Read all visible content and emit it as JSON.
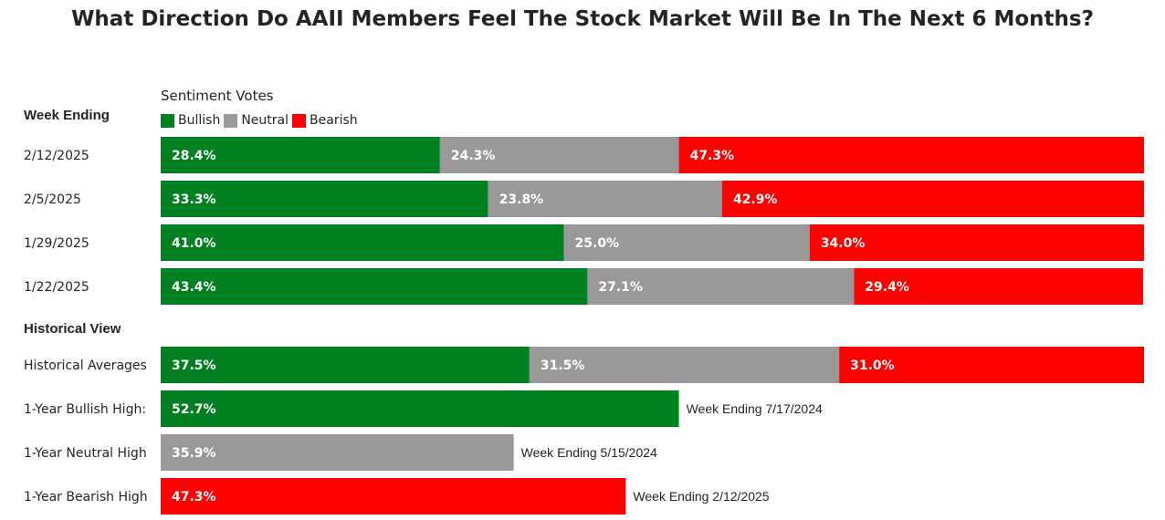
{
  "chart_data": {
    "type": "bar",
    "title": "What Direction Do AAII Members Feel The Stock Market Will Be In The Next 6 Months?",
    "legend_title": "Sentiment Votes",
    "legend_placement": "top-left",
    "series": [
      {
        "name": "Bullish",
        "color": "#008020"
      },
      {
        "name": "Neutral",
        "color": "#999999"
      },
      {
        "name": "Bearish",
        "color": "#FF0000"
      }
    ],
    "sections": [
      {
        "heading": "Week Ending",
        "rows": [
          {
            "label": "2/12/2025",
            "values": [
              28.4,
              24.3,
              47.3
            ],
            "display": [
              "28.4%",
              "24.3%",
              "47.3%"
            ]
          },
          {
            "label": "2/5/2025",
            "values": [
              33.3,
              23.8,
              42.9
            ],
            "display": [
              "33.3%",
              "23.8%",
              "42.9%"
            ]
          },
          {
            "label": "1/29/2025",
            "values": [
              41.0,
              25.0,
              34.0
            ],
            "display": [
              "41.0%",
              "25.0%",
              "34.0%"
            ]
          },
          {
            "label": "1/22/2025",
            "values": [
              43.4,
              27.1,
              29.4
            ],
            "display": [
              "43.4%",
              "27.1%",
              "29.4%"
            ]
          }
        ]
      },
      {
        "heading": "Historical View",
        "rows": [
          {
            "label": "Historical Averages",
            "values": [
              37.5,
              31.5,
              31.0
            ],
            "display": [
              "37.5%",
              "31.5%",
              "31.0%"
            ]
          },
          {
            "label": "1-Year Bullish High:",
            "values": [
              52.7,
              0,
              0
            ],
            "display": [
              "52.7%",
              "",
              ""
            ],
            "note": "Week Ending 7/17/2024"
          },
          {
            "label": "1-Year Neutral High",
            "values": [
              0,
              35.9,
              0
            ],
            "display": [
              "",
              "35.9%",
              ""
            ],
            "note": "Week Ending 5/15/2024"
          },
          {
            "label": "1-Year Bearish High",
            "values": [
              0,
              0,
              47.3
            ],
            "display": [
              "",
              "",
              "47.3%"
            ],
            "note": "Week Ending 2/12/2025"
          }
        ]
      }
    ],
    "xlim": [
      0,
      100
    ]
  }
}
